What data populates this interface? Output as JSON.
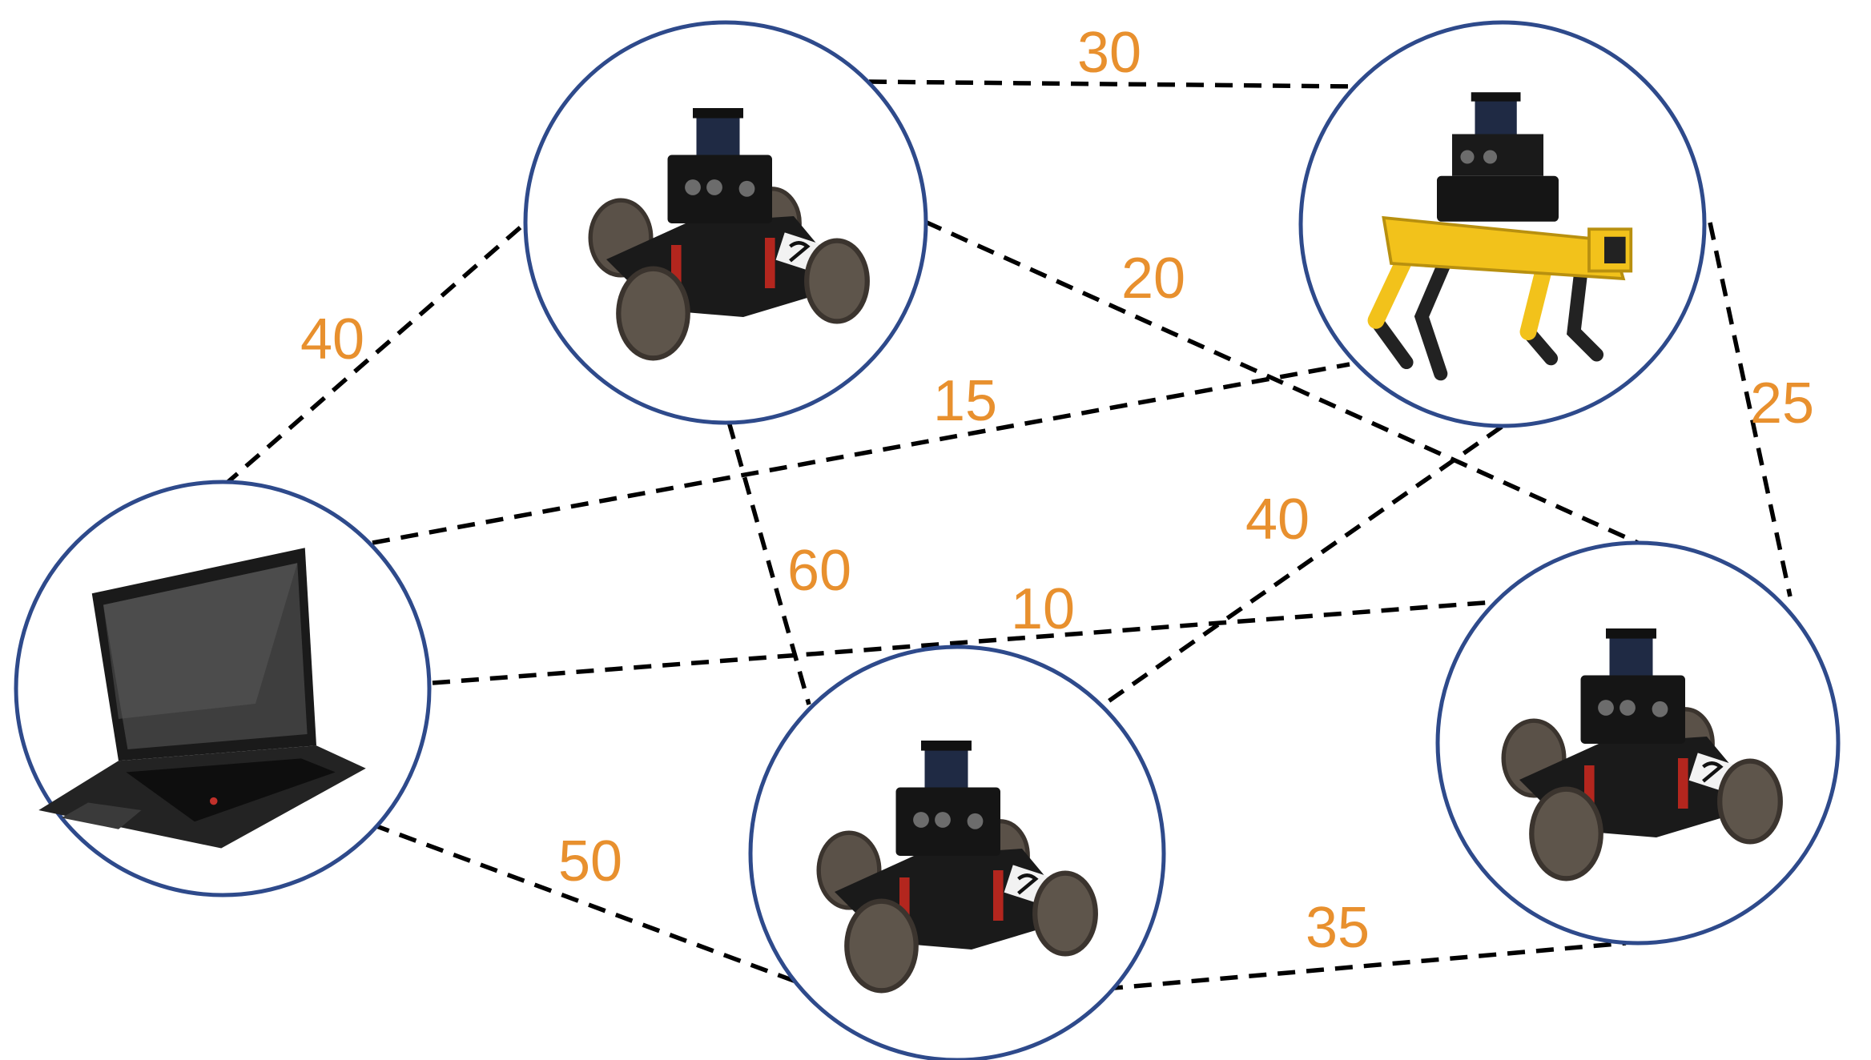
{
  "diagram": {
    "colors": {
      "edge": "#000000",
      "label": "#E8902E",
      "node_border": "#2E4A8B",
      "spot_yellow": "#F2C21B",
      "tire": "#5A5148",
      "chassis": "#1A1A1A"
    },
    "nodes": [
      {
        "id": "laptop",
        "kind": "laptop-icon"
      },
      {
        "id": "rover-top",
        "kind": "rover-robot-icon"
      },
      {
        "id": "spot",
        "kind": "quadruped-robot-icon"
      },
      {
        "id": "rover-bottom",
        "kind": "rover-robot-icon"
      },
      {
        "id": "rover-right",
        "kind": "rover-robot-icon"
      }
    ],
    "edges": [
      {
        "id": "laptop-rovertop",
        "from": "laptop",
        "to": "rover-top",
        "weight": "40"
      },
      {
        "id": "rovertop-spot",
        "from": "rover-top",
        "to": "spot",
        "weight": "30"
      },
      {
        "id": "rovertop-roverright",
        "from": "rover-top",
        "to": "rover-right",
        "weight": "20"
      },
      {
        "id": "laptop-spot",
        "from": "laptop",
        "to": "spot",
        "weight": "15"
      },
      {
        "id": "spot-roverright",
        "from": "spot",
        "to": "rover-right",
        "weight": "25"
      },
      {
        "id": "rovertop-roverbottom",
        "from": "rover-top",
        "to": "rover-bottom",
        "weight": "60"
      },
      {
        "id": "spot-roverbottom",
        "from": "spot",
        "to": "rover-bottom",
        "weight": "40"
      },
      {
        "id": "laptop-roverright",
        "from": "laptop",
        "to": "rover-right",
        "weight": "10"
      },
      {
        "id": "laptop-roverbottom",
        "from": "laptop",
        "to": "rover-bottom",
        "weight": "50"
      },
      {
        "id": "roverbottom-roverright",
        "from": "rover-bottom",
        "to": "rover-right",
        "weight": "35"
      }
    ]
  }
}
